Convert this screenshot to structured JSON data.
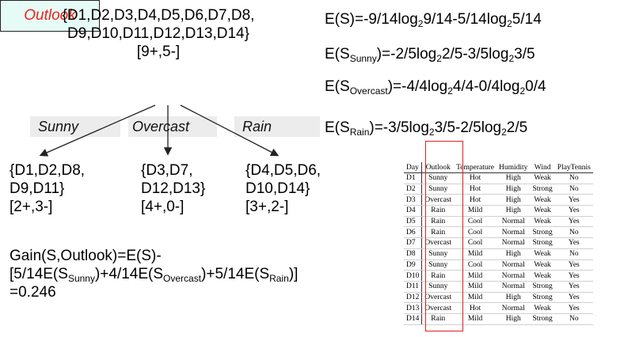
{
  "root_set": {
    "line1": "{D1,D2,D3,D4,D5,D6,D7,D8,",
    "line2": "D9,D10,D11,D12,D13,D14}",
    "counts": "[9+,5-]"
  },
  "root_node": "Outlook",
  "branches": [
    "Sunny",
    "Overcast",
    "Rain"
  ],
  "children": [
    {
      "line1": "{D1,D2,D8,",
      "line2": "D9,D11}",
      "counts": "[2+,3-]"
    },
    {
      "line1": "{D3,D7,",
      "line2": "D12,D13}",
      "counts": "[4+,0-]"
    },
    {
      "line1": "{D4,D5,D6,",
      "line2": "D10,D14}",
      "counts": "[3+,2-]"
    }
  ],
  "entropy": {
    "e_s": {
      "a": "E(S)=-9/14log",
      "b": "2",
      "c": "9/14-5/14log",
      "d": "2",
      "e": "5/14"
    },
    "e_sunny": {
      "a": "E(S",
      "b": "Sunny",
      "c": ")=-2/5log",
      "d": "2",
      "e": "2/5-3/5log",
      "f": "2",
      "g": "3/5"
    },
    "e_overcast": {
      "a": "E(S",
      "b": "Overcast",
      "c": ")=-4/4log",
      "d": "2",
      "e": "4/4-0/4log",
      "f": "2",
      "g": "0/4"
    },
    "e_rain": {
      "a": "E(S",
      "b": "Rain",
      "c": ")=-3/5log",
      "d": "2",
      "e": "3/5-2/5log",
      "f": "2",
      "g": "2/5"
    }
  },
  "gain": {
    "line1": "Gain(S,Outlook)=E(S)-",
    "l2a": "[5/14E(S",
    "l2b": "Sunny",
    "l2c": ")+4/14E(S",
    "l2d": "Overcast",
    "l2e": ")+5/14E(S",
    "l2f": "Rain",
    "l2g": ")]",
    "line3": "=0.246"
  },
  "table": {
    "headers": [
      "Day",
      "Outlook",
      "Temperature",
      "Humidity",
      "Wind",
      "PlayTennis"
    ],
    "rows": [
      [
        "D1",
        "Sunny",
        "Hot",
        "High",
        "Weak",
        "No"
      ],
      [
        "D2",
        "Sunny",
        "Hot",
        "High",
        "Strong",
        "No"
      ],
      [
        "D3",
        "Overcast",
        "Hot",
        "High",
        "Weak",
        "Yes"
      ],
      [
        "D4",
        "Rain",
        "Mild",
        "High",
        "Weak",
        "Yes"
      ],
      [
        "D5",
        "Rain",
        "Cool",
        "Normal",
        "Weak",
        "Yes"
      ],
      [
        "D6",
        "Rain",
        "Cool",
        "Normal",
        "Strong",
        "No"
      ],
      [
        "D7",
        "Overcast",
        "Cool",
        "Normal",
        "Strong",
        "Yes"
      ],
      [
        "D8",
        "Sunny",
        "Mild",
        "High",
        "Weak",
        "No"
      ],
      [
        "D9",
        "Sunny",
        "Cool",
        "Normal",
        "Weak",
        "Yes"
      ],
      [
        "D10",
        "Rain",
        "Mild",
        "Normal",
        "Weak",
        "Yes"
      ],
      [
        "D11",
        "Sunny",
        "Mild",
        "Normal",
        "Strong",
        "Yes"
      ],
      [
        "D12",
        "Overcast",
        "Mild",
        "High",
        "Strong",
        "Yes"
      ],
      [
        "D13",
        "Overcast",
        "Hot",
        "Normal",
        "Weak",
        "Yes"
      ],
      [
        "D14",
        "Rain",
        "Mild",
        "High",
        "Strong",
        "No"
      ]
    ]
  },
  "colors": {
    "node_fill": "#e7fbf6",
    "node_text": "#e8231a",
    "highlight": "#e02020",
    "branch_band": "#ececec"
  }
}
